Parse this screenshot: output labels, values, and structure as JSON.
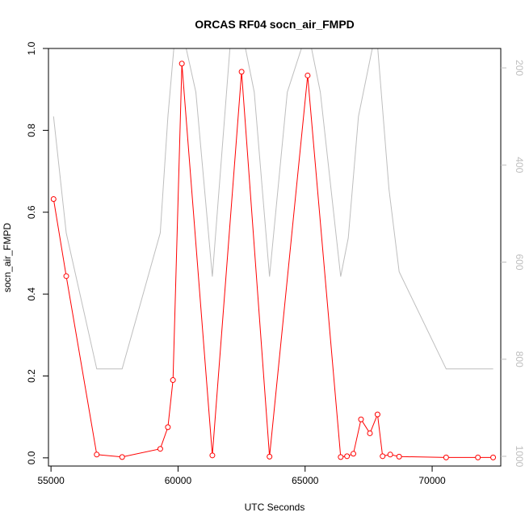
{
  "chart_data": {
    "type": "line",
    "title": "ORCAS RF04 socn_air_FMPD",
    "xlabel": "UTC Seconds",
    "ylabel": "socn_air_FMPD",
    "xlim": [
      54900,
      72700
    ],
    "ylim": [
      -0.02,
      1.0
    ],
    "x_ticks": [
      55000,
      60000,
      65000,
      70000
    ],
    "x_tick_labels": [
      "55000",
      "60000",
      "65000",
      "70000"
    ],
    "y_ticks": [
      0.0,
      0.2,
      0.4,
      0.6,
      0.8,
      1.0
    ],
    "y_tick_labels": [
      "0.0",
      "0.2",
      "0.4",
      "0.6",
      "0.8",
      "1.0"
    ],
    "y2lim": [
      1020,
      160
    ],
    "y2_ticks": [
      200,
      400,
      600,
      800,
      1000
    ],
    "y2_tick_labels": [
      "200",
      "400",
      "600",
      "800",
      "1000"
    ],
    "grid": false,
    "series": [
      {
        "color": "#ff0000",
        "marker": "open-circle",
        "axis": "left",
        "x": [
          55100,
          55600,
          56800,
          57800,
          59300,
          59600,
          59800,
          60150,
          61350,
          62500,
          63600,
          65100,
          66400,
          66650,
          66900,
          67200,
          67550,
          67850,
          68050,
          68350,
          68700,
          70550,
          71800,
          72400
        ],
        "y": [
          0.632,
          0.444,
          0.008,
          0.002,
          0.022,
          0.075,
          0.19,
          0.963,
          0.006,
          0.943,
          0.003,
          0.934,
          0.002,
          0.004,
          0.01,
          0.094,
          0.06,
          0.106,
          0.004,
          0.008,
          0.003,
          0.001,
          0.001,
          0.001
        ]
      },
      {
        "color": "#bebebe",
        "marker": "none",
        "axis": "right",
        "x": [
          55100,
          55600,
          56800,
          57800,
          59300,
          59600,
          59900,
          60150,
          60700,
          61350,
          62100,
          62500,
          63000,
          63600,
          64300,
          65100,
          65600,
          66400,
          66700,
          67100,
          67800,
          68300,
          68700,
          70550,
          72400
        ],
        "y": [
          300,
          540,
          820,
          820,
          540,
          300,
          120,
          120,
          250,
          630,
          120,
          120,
          250,
          630,
          250,
          120,
          250,
          630,
          550,
          300,
          120,
          450,
          620,
          820,
          820
        ]
      }
    ]
  }
}
